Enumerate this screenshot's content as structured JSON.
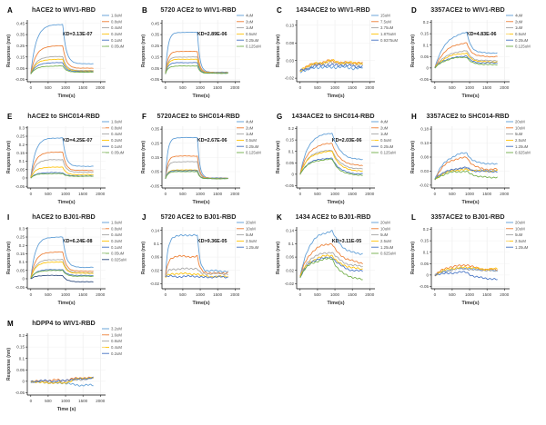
{
  "figure": {
    "background": "#ffffff",
    "palette": [
      "#5B9BD5",
      "#ED7D31",
      "#A5A5A5",
      "#FFC000",
      "#4472C4",
      "#70AD47",
      "#264478"
    ],
    "axis_color": "#000000",
    "grid_color": "#e6e6e6",
    "tick_text_color": "#404040",
    "legend_text_color": "#595959",
    "title_color": "#262626"
  },
  "chart_data": [
    {
      "type": "line",
      "label": "A",
      "title": "hACE2 to WIV1-RBD",
      "kd": "KD=3.13E-07",
      "xlabel": "Time(s)",
      "ylabel": "Response (nm)",
      "xticks": [
        0,
        500,
        1000,
        1500,
        2000
      ],
      "xlim": [
        -100,
        2150
      ],
      "assoc_end_s": 920,
      "t_end_s": 1800,
      "yticks": [
        0.45,
        0.35,
        0.25,
        0.15,
        0.05,
        -0.05
      ],
      "ylim": [
        -0.07,
        0.48
      ],
      "rise": 6,
      "fall": 9,
      "noise": 0.0015,
      "series": [
        {
          "name": "1.6uM",
          "peak": 0.44,
          "end": 0.09
        },
        {
          "name": "0.8uM",
          "peak": 0.25,
          "end": 0.05
        },
        {
          "name": "0.4uM",
          "peak": 0.155,
          "end": 0.03
        },
        {
          "name": "0.2uM",
          "peak": 0.13,
          "end": 0.025
        },
        {
          "name": "0.1uM",
          "peak": 0.1,
          "end": 0.02
        },
        {
          "name": "0.05uM",
          "peak": 0.07,
          "end": 0.015
        }
      ]
    },
    {
      "type": "line",
      "label": "B",
      "title": "5720 ACE2 to WIV1-RBD",
      "kd": "KD=2.89E-06",
      "xlabel": "Time(s)",
      "ylabel": "Response (nm)",
      "xticks": [
        0,
        500,
        1000,
        1500,
        2000
      ],
      "xlim": [
        -100,
        2150
      ],
      "assoc_end_s": 920,
      "t_end_s": 1800,
      "yticks": [
        0.45,
        0.35,
        0.25,
        0.15,
        0.05,
        -0.05
      ],
      "ylim": [
        -0.07,
        0.48
      ],
      "rise": 13,
      "fall": 13,
      "noise": 0.0015,
      "series": [
        {
          "name": "4uM",
          "peak": 0.37,
          "end": 0.015
        },
        {
          "name": "2uM",
          "peak": 0.2,
          "end": 0.012
        },
        {
          "name": "1uM",
          "peak": 0.15,
          "end": 0.01
        },
        {
          "name": "0.5uM",
          "peak": 0.13,
          "end": 0.008
        },
        {
          "name": "0.25uM",
          "peak": 0.1,
          "end": 0.006
        },
        {
          "name": "0.125uM",
          "peak": 0.07,
          "end": 0.005
        }
      ]
    },
    {
      "type": "line",
      "label": "C",
      "title": "1434ACE2 to WIV1-RBD",
      "kd": null,
      "xlabel": "Time(s)",
      "ylabel": "Response (nm)",
      "xticks": [
        0,
        500,
        1000,
        1500,
        2000
      ],
      "xlim": [
        -100,
        2150
      ],
      "assoc_end_s": 920,
      "t_end_s": 1800,
      "yticks": [
        0.13,
        0.08,
        0.03,
        -0.02
      ],
      "ylim": [
        -0.03,
        0.145
      ],
      "rise": 2.5,
      "fall": 1.5,
      "noise": 0.0045,
      "series": [
        {
          "name": "15uM",
          "peak": 0.012,
          "end": 0.008
        },
        {
          "name": "7.5uM",
          "peak": 0.028,
          "end": 0.02
        },
        {
          "name": "3.75uM",
          "peak": 0.024,
          "end": 0.017
        },
        {
          "name": "1.875uM",
          "peak": 0.028,
          "end": 0.02
        },
        {
          "name": "0.9375uM",
          "peak": 0.018,
          "end": 0.013
        }
      ]
    },
    {
      "type": "line",
      "label": "D",
      "title": "3357ACE2 to WIV1-RBD",
      "kd": "KD=4.83E-06",
      "xlabel": "Time(s)",
      "ylabel": "Response (nm)",
      "xticks": [
        0,
        500,
        1000,
        1500,
        2000
      ],
      "xlim": [
        -100,
        2150
      ],
      "assoc_end_s": 920,
      "t_end_s": 1800,
      "yticks": [
        0.2,
        0.15,
        0.1,
        0.05,
        0,
        -0.05
      ],
      "ylim": [
        -0.06,
        0.21
      ],
      "rise": 3,
      "fall": 7,
      "noise": 0.002,
      "series": [
        {
          "name": "4uM",
          "peak": 0.155,
          "end": 0.065
        },
        {
          "name": "2uM",
          "peak": 0.11,
          "end": 0.05
        },
        {
          "name": "1uM",
          "peak": 0.075,
          "end": 0.032
        },
        {
          "name": "0.5uM",
          "peak": 0.065,
          "end": 0.027
        },
        {
          "name": "0.25uM",
          "peak": 0.052,
          "end": 0.022
        },
        {
          "name": "0.125uM",
          "peak": 0.048,
          "end": 0.015
        }
      ]
    },
    {
      "type": "line",
      "label": "E",
      "title": "hACE2 to SHC014-RBD",
      "kd": "KD=4.25E-07",
      "xlabel": "Time(s)",
      "ylabel": "Response (nm)",
      "xticks": [
        0,
        500,
        1000,
        1500,
        2000
      ],
      "xlim": [
        -100,
        2150
      ],
      "assoc_end_s": 920,
      "t_end_s": 1800,
      "yticks": [
        0.3,
        0.25,
        0.2,
        0.15,
        0.1,
        0.05,
        0,
        -0.05
      ],
      "ylim": [
        -0.06,
        0.31
      ],
      "rise": 7,
      "fall": 10,
      "noise": 0.0015,
      "series": [
        {
          "name": "1.6uM",
          "peak": 0.24,
          "end": 0.07
        },
        {
          "name": "0.8uM",
          "peak": 0.155,
          "end": 0.045
        },
        {
          "name": "0.4uM",
          "peak": 0.11,
          "end": 0.035
        },
        {
          "name": "0.2uM",
          "peak": 0.065,
          "end": 0.02
        },
        {
          "name": "0.1uM",
          "peak": 0.032,
          "end": 0.012
        },
        {
          "name": "0.05uM",
          "peak": 0.026,
          "end": 0.01
        }
      ]
    },
    {
      "type": "line",
      "label": "F",
      "title": "5720ACE2 to SHC014-RBD",
      "kd": "KD=2.67E-06",
      "xlabel": "Time(s)",
      "ylabel": "Response (nm)",
      "xticks": [
        0,
        500,
        1000,
        1500,
        2000
      ],
      "xlim": [
        -100,
        2150
      ],
      "assoc_end_s": 920,
      "t_end_s": 1800,
      "yticks": [
        0.35,
        0.25,
        0.15,
        0.05,
        -0.05
      ],
      "ylim": [
        -0.065,
        0.37
      ],
      "rise": 14,
      "fall": 14,
      "noise": 0.0015,
      "series": [
        {
          "name": "4uM",
          "peak": 0.29,
          "end": 0.006
        },
        {
          "name": "2uM",
          "peak": 0.16,
          "end": 0.004
        },
        {
          "name": "1uM",
          "peak": 0.12,
          "end": 0.003
        },
        {
          "name": "0.5uM",
          "peak": 0.062,
          "end": 0.002
        },
        {
          "name": "0.25uM",
          "peak": 0.057,
          "end": 0.001
        },
        {
          "name": "0.125uM",
          "peak": 0.05,
          "end": 0.0
        }
      ]
    },
    {
      "type": "line",
      "label": "G",
      "title": "1434ACE2 to SHC014-RBD",
      "kd": "KD=2.03E-06",
      "xlabel": "Time(s)",
      "ylabel": "Response (nm)",
      "xticks": [
        0,
        500,
        1000,
        1500,
        2000
      ],
      "xlim": [
        -100,
        2150
      ],
      "assoc_end_s": 920,
      "t_end_s": 1800,
      "yticks": [
        0.2,
        0.15,
        0.1,
        0.05,
        0,
        -0.05
      ],
      "ylim": [
        -0.06,
        0.21
      ],
      "rise": 4,
      "fall": 4,
      "noise": 0.002,
      "series": [
        {
          "name": "4uM",
          "peak": 0.18,
          "end": 0.062
        },
        {
          "name": "2uM",
          "peak": 0.135,
          "end": 0.036
        },
        {
          "name": "1uM",
          "peak": 0.105,
          "end": 0.022
        },
        {
          "name": "0.5uM",
          "peak": 0.1,
          "end": 0.012
        },
        {
          "name": "0.25uM",
          "peak": 0.07,
          "end": 0.0
        },
        {
          "name": "0.125uM",
          "peak": 0.065,
          "end": -0.006
        }
      ]
    },
    {
      "type": "line",
      "label": "H",
      "title": "3357ACE2 to SHC014-RBD",
      "kd": null,
      "xlabel": "Time(s)",
      "ylabel": "Response (nm)",
      "xticks": [
        0,
        500,
        1000,
        1500,
        2000
      ],
      "xlim": [
        -100,
        2150
      ],
      "assoc_end_s": 920,
      "t_end_s": 1800,
      "yticks": [
        0.18,
        0.13,
        0.08,
        0.03,
        -0.02
      ],
      "ylim": [
        -0.03,
        0.19
      ],
      "rise": 3,
      "fall": 5,
      "noise": 0.003,
      "series": [
        {
          "name": "20uM",
          "peak": 0.095,
          "end": 0.055
        },
        {
          "name": "10uM",
          "peak": 0.08,
          "end": 0.036
        },
        {
          "name": "5uM",
          "peak": 0.04,
          "end": 0.032
        },
        {
          "name": "2.5uM",
          "peak": 0.036,
          "end": 0.03
        },
        {
          "name": "1.25uM",
          "peak": 0.042,
          "end": 0.028
        },
        {
          "name": "0.625uM",
          "peak": 0.03,
          "end": 0.008
        }
      ]
    },
    {
      "type": "line",
      "label": "I",
      "title": "hACE2 to BJ01-RBD",
      "kd": "KD=6.24E-08",
      "xlabel": "Time(s)",
      "ylabel": "Response (nm)",
      "xticks": [
        0,
        500,
        1000,
        1500,
        2000
      ],
      "xlim": [
        -100,
        2150
      ],
      "assoc_end_s": 920,
      "t_end_s": 1800,
      "yticks": [
        0.3,
        0.25,
        0.2,
        0.15,
        0.1,
        0.05,
        0,
        -0.05
      ],
      "ylim": [
        -0.06,
        0.31
      ],
      "rise": 7,
      "fall": 9,
      "noise": 0.0015,
      "series": [
        {
          "name": "1.6uM",
          "peak": 0.25,
          "end": 0.068
        },
        {
          "name": "0.8uM",
          "peak": 0.16,
          "end": 0.045
        },
        {
          "name": "0.4uM",
          "peak": 0.115,
          "end": 0.036
        },
        {
          "name": "0.2uM",
          "peak": 0.1,
          "end": 0.033
        },
        {
          "name": "0.1uM",
          "peak": 0.055,
          "end": 0.02
        },
        {
          "name": "0.05uM",
          "peak": 0.05,
          "end": 0.015
        },
        {
          "name": "0.025uM",
          "peak": 0.02,
          "end": -0.018
        }
      ]
    },
    {
      "type": "line",
      "label": "J",
      "title": "5720 ACE2 to BJ01-RBD",
      "kd": "KD>9.36E-05",
      "xlabel": "Time(s)",
      "ylabel": "Response (nm)",
      "xticks": [
        0,
        500,
        1000,
        1500,
        2000
      ],
      "xlim": [
        -100,
        2150
      ],
      "assoc_end_s": 920,
      "t_end_s": 1800,
      "yticks": [
        0.14,
        0.1,
        0.06,
        0.02,
        -0.02
      ],
      "ylim": [
        -0.035,
        0.15
      ],
      "rise": 13,
      "fall": 13,
      "noise": 0.003,
      "series": [
        {
          "name": "20uM",
          "peak": 0.125,
          "end": 0.018
        },
        {
          "name": "10uM",
          "peak": 0.062,
          "end": 0.012
        },
        {
          "name": "5uM",
          "peak": 0.025,
          "end": 0.01
        },
        {
          "name": "2.5uM",
          "peak": 0.01,
          "end": 0.002
        },
        {
          "name": "1.25uM",
          "peak": 0.002,
          "end": 0.0
        }
      ]
    },
    {
      "type": "line",
      "label": "K",
      "title": "1434 ACE2 to BJ01-RBD",
      "kd": "KD>3.11E-05",
      "xlabel": "Time(s)",
      "ylabel": "Response (nm)",
      "xticks": [
        0,
        500,
        1000,
        1500,
        2000
      ],
      "xlim": [
        -100,
        2150
      ],
      "assoc_end_s": 920,
      "t_end_s": 1800,
      "yticks": [
        0.14,
        0.1,
        0.06,
        0.02,
        -0.02
      ],
      "ylim": [
        -0.035,
        0.15
      ],
      "rise": 3.5,
      "fall": 3,
      "noise": 0.003,
      "series": [
        {
          "name": "20uM",
          "peak": 0.138,
          "end": 0.065
        },
        {
          "name": "10uM",
          "peak": 0.1,
          "end": 0.04
        },
        {
          "name": "5uM",
          "peak": 0.075,
          "end": 0.03
        },
        {
          "name": "2.5uM",
          "peak": 0.065,
          "end": 0.022
        },
        {
          "name": "1.25uM",
          "peak": 0.06,
          "end": 0.015
        },
        {
          "name": "0.625uM",
          "peak": 0.055,
          "end": -0.01
        }
      ]
    },
    {
      "type": "line",
      "label": "L",
      "title": "3357ACE2 to BJ01-RBD",
      "kd": null,
      "xlabel": "Time(s)",
      "ylabel": "Response (nm)",
      "xticks": [
        0,
        500,
        1000,
        1500,
        2000
      ],
      "xlim": [
        -100,
        2150
      ],
      "assoc_end_s": 920,
      "t_end_s": 1800,
      "yticks": [
        0.2,
        0.15,
        0.1,
        0.05,
        0,
        -0.05
      ],
      "ylim": [
        -0.06,
        0.21
      ],
      "rise": 2.5,
      "fall": 3,
      "noise": 0.0045,
      "series": [
        {
          "name": "20uM",
          "peak": 0.03,
          "end": 0.02
        },
        {
          "name": "10uM",
          "peak": 0.045,
          "end": 0.022
        },
        {
          "name": "5uM",
          "peak": 0.028,
          "end": 0.018
        },
        {
          "name": "2.5uM",
          "peak": 0.035,
          "end": 0.025
        },
        {
          "name": "1.25uM",
          "peak": 0.012,
          "end": -0.02
        }
      ]
    },
    {
      "type": "line",
      "label": "M",
      "title": "hDPP4 to WIV1-RBD",
      "kd": null,
      "xlabel": "Time (s)",
      "ylabel": "Response (nm)",
      "xticks": [
        0,
        500,
        1000,
        1500,
        2000
      ],
      "xlim": [
        -100,
        2150
      ],
      "assoc_end_s": 950,
      "t_end_s": 1800,
      "yticks": [
        0.2,
        0.15,
        0.1,
        0.05,
        0,
        -0.05
      ],
      "ylim": [
        -0.06,
        0.21
      ],
      "rise": 2,
      "fall": 2,
      "noise": 0.0045,
      "series": [
        {
          "name": "3.2uM",
          "peak": -0.008,
          "end": -0.02
        },
        {
          "name": "1.6uM",
          "peak": 0.005,
          "end": 0.018
        },
        {
          "name": "0.8uM",
          "peak": -0.005,
          "end": 0.015
        },
        {
          "name": "0.4uM",
          "peak": -0.008,
          "end": 0.02
        },
        {
          "name": "0.2uM",
          "peak": 0.002,
          "end": 0.015
        }
      ]
    }
  ]
}
